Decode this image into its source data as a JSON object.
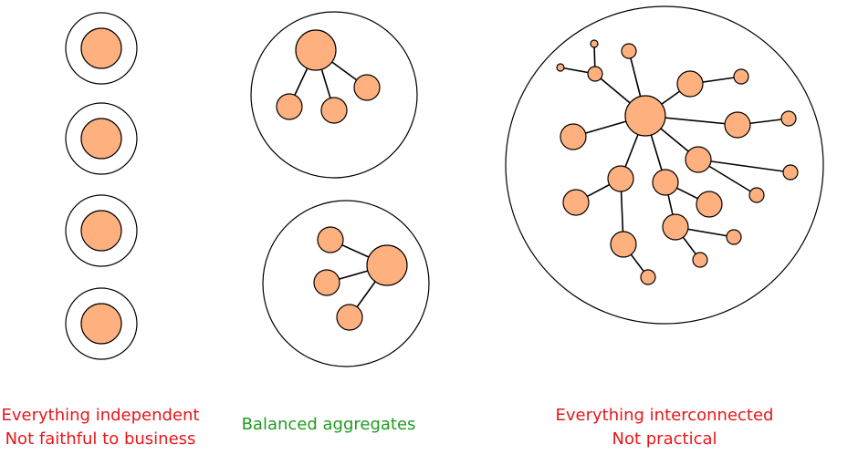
{
  "colors": {
    "node_fill": "#FFB07F",
    "stroke": "#000000",
    "bad_text": "#E8161B",
    "good_text": "#229A22"
  },
  "captions": {
    "independent": {
      "line1": "Everything independent",
      "line2": "Not faithful to business"
    },
    "balanced": {
      "line1": "Balanced aggregates"
    },
    "interconnected": {
      "line1": "Everything interconnected",
      "line2": "Not practical"
    }
  }
}
